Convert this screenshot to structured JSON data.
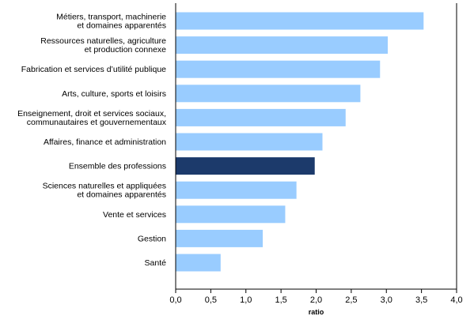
{
  "chart_data": {
    "type": "bar",
    "orientation": "horizontal",
    "categories": [
      [
        "Métiers, transport, machinerie",
        "et domaines apparentés"
      ],
      [
        "Ressources naturelles, agriculture",
        "et production connexe"
      ],
      [
        "Fabrication et services d’utilité publique"
      ],
      [
        "Arts, culture, sports et loisirs"
      ],
      [
        "Enseignement, droit et services sociaux,",
        "communautaires et gouvernementaux"
      ],
      [
        "Affaires, finance et administration"
      ],
      [
        "Ensemble des professions"
      ],
      [
        "Sciences naturelles et appliquées",
        "et domaines apparentés"
      ],
      [
        "Vente et services"
      ],
      [
        "Gestion"
      ],
      [
        "Santé"
      ]
    ],
    "values": [
      3.53,
      3.02,
      2.91,
      2.63,
      2.42,
      2.09,
      1.98,
      1.72,
      1.56,
      1.24,
      0.64
    ],
    "highlight_index": 6,
    "xlabel": "ratio",
    "xlim": [
      0,
      4
    ],
    "xticks": [
      0,
      0.5,
      1,
      1.5,
      2,
      2.5,
      3,
      3.5,
      4
    ],
    "xtick_labels": [
      "0,0",
      "0,5",
      "1,0",
      "1,5",
      "2,0",
      "2,5",
      "3,0",
      "3,5",
      "4,0"
    ],
    "colors": {
      "bar": "#99ccff",
      "highlight": "#1c3a6b",
      "axis": "#000000"
    }
  }
}
